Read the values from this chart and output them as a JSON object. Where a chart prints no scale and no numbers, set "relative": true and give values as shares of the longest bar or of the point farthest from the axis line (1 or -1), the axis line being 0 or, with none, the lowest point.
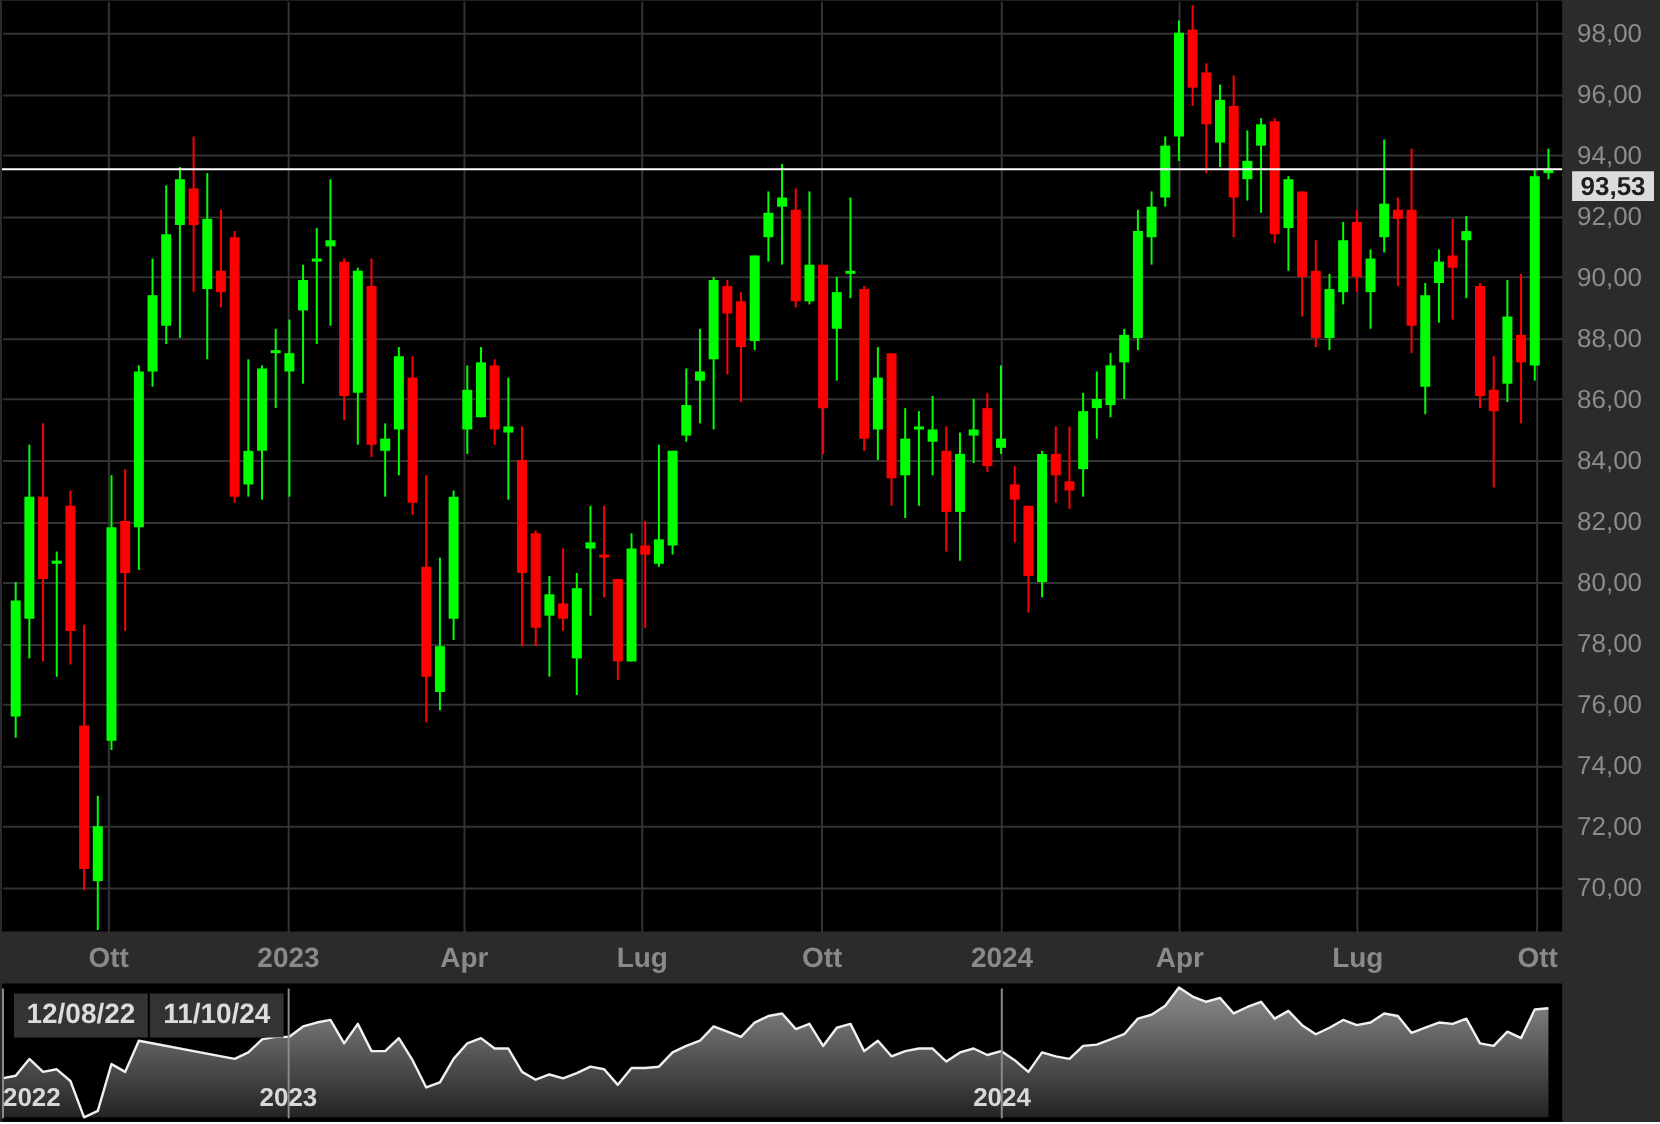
{
  "chart_data": [
    {
      "type": "candlestick",
      "x": [
        "2022-08-15",
        "2022-08-22",
        "2022-08-29",
        "2022-09-05",
        "2022-09-12",
        "2022-09-19",
        "2022-09-26",
        "2022-10-03",
        "2022-10-10",
        "2022-10-17",
        "2022-10-24",
        "2022-10-31",
        "2022-11-07",
        "2022-11-14",
        "2022-11-21",
        "2022-11-28",
        "2022-12-05",
        "2022-12-12",
        "2022-12-19",
        "2022-12-26",
        "2023-01-02",
        "2023-01-09",
        "2023-01-16",
        "2023-01-23",
        "2023-01-30",
        "2023-02-06",
        "2023-02-13",
        "2023-02-20",
        "2023-02-27",
        "2023-03-06",
        "2023-03-13",
        "2023-03-20",
        "2023-03-27",
        "2023-04-03",
        "2023-04-10",
        "2023-04-17",
        "2023-04-24",
        "2023-05-01",
        "2023-05-08",
        "2023-05-15",
        "2023-05-22",
        "2023-05-29",
        "2023-06-05",
        "2023-06-12",
        "2023-06-19",
        "2023-06-26",
        "2023-07-03",
        "2023-07-10",
        "2023-07-17",
        "2023-07-24",
        "2023-07-31",
        "2023-08-07",
        "2023-08-14",
        "2023-08-21",
        "2023-08-28",
        "2023-09-04",
        "2023-09-11",
        "2023-09-18",
        "2023-09-25",
        "2023-10-02",
        "2023-10-09",
        "2023-10-16",
        "2023-10-23",
        "2023-10-30",
        "2023-11-06",
        "2023-11-13",
        "2023-11-20",
        "2023-11-27",
        "2023-12-04",
        "2023-12-11",
        "2023-12-18",
        "2023-12-25",
        "2024-01-01",
        "2024-01-08",
        "2024-01-15",
        "2024-01-22",
        "2024-01-29",
        "2024-02-05",
        "2024-02-12",
        "2024-02-19",
        "2024-02-26",
        "2024-03-04",
        "2024-03-11",
        "2024-03-18",
        "2024-03-25",
        "2024-04-01",
        "2024-04-08",
        "2024-04-15",
        "2024-04-22",
        "2024-04-29",
        "2024-05-06",
        "2024-05-13",
        "2024-05-20",
        "2024-05-27",
        "2024-06-03",
        "2024-06-10",
        "2024-06-17",
        "2024-06-24",
        "2024-07-01",
        "2024-07-08",
        "2024-07-15",
        "2024-07-22",
        "2024-07-29",
        "2024-08-05",
        "2024-08-12",
        "2024-08-19",
        "2024-08-26",
        "2024-09-02",
        "2024-09-09",
        "2024-09-16",
        "2024-09-23",
        "2024-09-30",
        "2024-10-07"
      ],
      "ohlc": [
        [
          75.6,
          80.0,
          74.9,
          79.4
        ],
        [
          78.8,
          84.5,
          77.5,
          82.8
        ],
        [
          82.8,
          85.2,
          77.4,
          80.1
        ],
        [
          80.6,
          81.0,
          76.9,
          80.7
        ],
        [
          82.5,
          83.0,
          77.3,
          78.4
        ],
        [
          75.3,
          78.6,
          69.9,
          70.6
        ],
        [
          70.2,
          73.0,
          68.6,
          72.0
        ],
        [
          74.8,
          83.5,
          74.5,
          81.8
        ],
        [
          82.0,
          83.7,
          78.4,
          80.3
        ],
        [
          81.8,
          87.1,
          80.4,
          86.9
        ],
        [
          86.9,
          90.6,
          86.4,
          89.4
        ],
        [
          88.4,
          93.0,
          87.8,
          91.4
        ],
        [
          91.7,
          93.6,
          88.0,
          93.2
        ],
        [
          92.9,
          94.6,
          89.5,
          91.7
        ],
        [
          89.6,
          93.4,
          87.3,
          91.9
        ],
        [
          90.2,
          92.2,
          89.0,
          89.5
        ],
        [
          91.3,
          91.5,
          82.6,
          82.8
        ],
        [
          83.2,
          87.3,
          82.8,
          84.3
        ],
        [
          84.3,
          87.1,
          82.7,
          87.0
        ],
        [
          87.5,
          88.3,
          85.7,
          87.6
        ],
        [
          86.9,
          88.6,
          82.8,
          87.5
        ],
        [
          88.9,
          90.4,
          86.5,
          89.9
        ],
        [
          90.5,
          91.6,
          87.8,
          90.6
        ],
        [
          91.0,
          93.2,
          88.4,
          91.2
        ],
        [
          90.5,
          90.6,
          85.3,
          86.1
        ],
        [
          86.2,
          90.3,
          84.5,
          90.2
        ],
        [
          89.7,
          90.6,
          84.1,
          84.5
        ],
        [
          84.3,
          85.2,
          82.8,
          84.7
        ],
        [
          85.0,
          87.7,
          83.5,
          87.4
        ],
        [
          86.7,
          87.4,
          82.2,
          82.6
        ],
        [
          80.5,
          83.5,
          75.4,
          76.9
        ],
        [
          76.4,
          80.8,
          75.8,
          77.9
        ],
        [
          78.8,
          83.0,
          78.1,
          82.8
        ],
        [
          85.0,
          87.1,
          84.2,
          86.3
        ],
        [
          85.4,
          87.7,
          85.4,
          87.2
        ],
        [
          87.1,
          87.3,
          84.5,
          85.0
        ],
        [
          84.9,
          86.7,
          82.7,
          85.1
        ],
        [
          84.0,
          85.1,
          77.9,
          80.3
        ],
        [
          81.6,
          81.7,
          77.9,
          78.5
        ],
        [
          78.9,
          80.2,
          76.9,
          79.6
        ],
        [
          79.3,
          81.1,
          78.4,
          78.8
        ],
        [
          77.5,
          80.3,
          76.3,
          79.8
        ],
        [
          81.1,
          82.5,
          78.9,
          81.3
        ],
        [
          80.9,
          82.5,
          79.5,
          80.8
        ],
        [
          80.1,
          80.1,
          76.8,
          77.4
        ],
        [
          77.4,
          81.6,
          77.4,
          81.1
        ],
        [
          81.2,
          82.0,
          78.5,
          80.9
        ],
        [
          80.6,
          84.5,
          80.5,
          81.4
        ],
        [
          81.2,
          84.3,
          80.9,
          84.3
        ],
        [
          84.8,
          87.0,
          84.6,
          85.8
        ],
        [
          86.6,
          88.3,
          85.2,
          86.9
        ],
        [
          87.3,
          90.0,
          85.0,
          89.9
        ],
        [
          89.7,
          89.9,
          86.8,
          88.8
        ],
        [
          89.2,
          89.5,
          85.9,
          87.7
        ],
        [
          87.9,
          90.7,
          87.6,
          90.7
        ],
        [
          91.3,
          92.8,
          90.5,
          92.1
        ],
        [
          92.3,
          93.7,
          90.4,
          92.6
        ],
        [
          92.2,
          92.9,
          89.0,
          89.2
        ],
        [
          89.2,
          92.8,
          89.1,
          90.4
        ],
        [
          90.4,
          90.4,
          84.2,
          85.7
        ],
        [
          88.3,
          90.0,
          86.6,
          89.5
        ],
        [
          90.1,
          92.6,
          89.3,
          90.2
        ],
        [
          89.6,
          89.7,
          84.3,
          84.7
        ],
        [
          85.0,
          87.7,
          84.0,
          86.7
        ],
        [
          87.5,
          87.5,
          82.5,
          83.4
        ],
        [
          83.5,
          85.7,
          82.1,
          84.7
        ],
        [
          85.0,
          85.6,
          82.5,
          85.1
        ],
        [
          84.6,
          86.1,
          83.5,
          85.0
        ],
        [
          84.3,
          85.1,
          81.0,
          82.3
        ],
        [
          82.3,
          84.9,
          80.7,
          84.2
        ],
        [
          84.8,
          86.0,
          83.9,
          85.0
        ],
        [
          85.7,
          86.2,
          83.6,
          83.8
        ],
        [
          84.4,
          87.1,
          84.2,
          84.7
        ],
        [
          83.2,
          83.8,
          81.3,
          82.7
        ],
        [
          82.5,
          82.5,
          79.0,
          80.2
        ],
        [
          80.0,
          84.3,
          79.5,
          84.2
        ],
        [
          84.2,
          85.1,
          82.6,
          83.5
        ],
        [
          83.3,
          85.1,
          82.4,
          83.0
        ],
        [
          83.7,
          86.2,
          82.8,
          85.6
        ],
        [
          85.7,
          86.9,
          84.7,
          86.0
        ],
        [
          85.8,
          87.5,
          85.4,
          87.1
        ],
        [
          87.2,
          88.3,
          86.0,
          88.1
        ],
        [
          88.0,
          92.2,
          87.6,
          91.5
        ],
        [
          91.3,
          92.8,
          90.4,
          92.3
        ],
        [
          92.6,
          94.6,
          92.3,
          94.3
        ],
        [
          94.6,
          98.4,
          93.8,
          98.0
        ],
        [
          98.1,
          98.9,
          95.6,
          96.2
        ],
        [
          96.7,
          97.0,
          93.4,
          95.0
        ],
        [
          94.4,
          96.3,
          93.6,
          95.8
        ],
        [
          95.6,
          96.6,
          91.3,
          92.6
        ],
        [
          93.2,
          94.8,
          92.5,
          93.8
        ],
        [
          94.3,
          95.2,
          92.1,
          95.0
        ],
        [
          95.1,
          95.2,
          91.1,
          91.4
        ],
        [
          91.6,
          93.3,
          90.2,
          93.2
        ],
        [
          92.8,
          92.8,
          88.7,
          90.0
        ],
        [
          90.2,
          91.2,
          87.7,
          88.0
        ],
        [
          88.0,
          90.1,
          87.6,
          89.6
        ],
        [
          89.5,
          91.8,
          89.1,
          91.2
        ],
        [
          91.8,
          92.2,
          89.5,
          90.0
        ],
        [
          89.5,
          90.9,
          88.3,
          90.6
        ],
        [
          91.3,
          94.5,
          90.8,
          92.4
        ],
        [
          92.2,
          92.6,
          89.7,
          91.9
        ],
        [
          92.2,
          94.2,
          87.5,
          88.4
        ],
        [
          86.4,
          89.8,
          85.5,
          89.4
        ],
        [
          89.8,
          90.9,
          88.5,
          90.5
        ],
        [
          90.7,
          91.9,
          88.6,
          90.3
        ],
        [
          91.2,
          92.0,
          89.3,
          91.5
        ],
        [
          89.7,
          89.8,
          85.7,
          86.1
        ],
        [
          86.3,
          87.4,
          83.1,
          85.6
        ],
        [
          86.5,
          89.9,
          85.9,
          88.7
        ],
        [
          88.1,
          90.1,
          85.2,
          87.2
        ],
        [
          87.1,
          93.5,
          86.6,
          93.3
        ],
        [
          93.4,
          94.2,
          93.2,
          93.53
        ]
      ],
      "colors": [
        "#00ff00",
        "#00ff00",
        "#ff0000",
        "#00ff00",
        "#ff0000",
        "#ff0000",
        "#00ff00",
        "#00ff00",
        "#ff0000",
        "#00ff00",
        "#00ff00",
        "#00ff00",
        "#00ff00",
        "#ff0000",
        "#00ff00",
        "#ff0000",
        "#ff0000",
        "#00ff00",
        "#00ff00",
        "#00ff00",
        "#00ff00",
        "#00ff00",
        "#00ff00",
        "#00ff00",
        "#ff0000",
        "#00ff00",
        "#ff0000",
        "#00ff00",
        "#00ff00",
        "#ff0000",
        "#ff0000",
        "#00ff00",
        "#00ff00",
        "#00ff00",
        "#00ff00",
        "#ff0000",
        "#00ff00",
        "#ff0000",
        "#ff0000",
        "#00ff00",
        "#ff0000",
        "#00ff00",
        "#00ff00",
        "#ff0000",
        "#ff0000",
        "#00ff00",
        "#ff0000",
        "#00ff00",
        "#00ff00",
        "#00ff00",
        "#00ff00",
        "#00ff00",
        "#ff0000",
        "#ff0000",
        "#00ff00",
        "#00ff00",
        "#00ff00",
        "#ff0000",
        "#00ff00",
        "#ff0000",
        "#00ff00",
        "#00ff00",
        "#ff0000",
        "#00ff00",
        "#ff0000",
        "#00ff00",
        "#00ff00",
        "#00ff00",
        "#ff0000",
        "#00ff00",
        "#00ff00",
        "#ff0000",
        "#00ff00",
        "#ff0000",
        "#ff0000",
        "#00ff00",
        "#ff0000",
        "#ff0000",
        "#00ff00",
        "#00ff00",
        "#00ff00",
        "#00ff00",
        "#00ff00",
        "#00ff00",
        "#00ff00",
        "#00ff00",
        "#ff0000",
        "#ff0000",
        "#00ff00",
        "#ff0000",
        "#00ff00",
        "#00ff00",
        "#ff0000",
        "#00ff00",
        "#ff0000",
        "#ff0000",
        "#00ff00",
        "#00ff00",
        "#ff0000",
        "#00ff00",
        "#00ff00",
        "#ff0000",
        "#ff0000",
        "#00ff00",
        "#00ff00",
        "#ff0000",
        "#00ff00",
        "#ff0000",
        "#ff0000",
        "#00ff00",
        "#ff0000",
        "#00ff00",
        "#00ff00"
      ],
      "xlim": [
        "2022-08-08",
        "2024-10-14"
      ],
      "ylim": [
        68.55,
        99.05
      ],
      "xticks": [
        {
          "value": "2022-10-01",
          "label": "Ott"
        },
        {
          "value": "2023-01-01",
          "label": "2023"
        },
        {
          "value": "2023-04-01",
          "label": "Apr"
        },
        {
          "value": "2023-07-01",
          "label": "Lug"
        },
        {
          "value": "2023-10-01",
          "label": "Ott"
        },
        {
          "value": "2024-01-01",
          "label": "2024"
        },
        {
          "value": "2024-04-01",
          "label": "Apr"
        },
        {
          "value": "2024-07-01",
          "label": "Lug"
        },
        {
          "value": "2024-10-01",
          "label": "Ott"
        }
      ],
      "yticks": [
        {
          "value": 70,
          "label": "70,00"
        },
        {
          "value": 72,
          "label": "72,00"
        },
        {
          "value": 74,
          "label": "74,00"
        },
        {
          "value": 76,
          "label": "76,00"
        },
        {
          "value": 78,
          "label": "78,00"
        },
        {
          "value": 80,
          "label": "80,00"
        },
        {
          "value": 82,
          "label": "82,00"
        },
        {
          "value": 84,
          "label": "84,00"
        },
        {
          "value": 86,
          "label": "86,00"
        },
        {
          "value": 88,
          "label": "88,00"
        },
        {
          "value": 90,
          "label": "90,00"
        },
        {
          "value": 92,
          "label": "92,00"
        },
        {
          "value": 94,
          "label": "94,00"
        },
        {
          "value": 96,
          "label": "96,00"
        },
        {
          "value": 98,
          "label": "98,00"
        }
      ],
      "grid": true,
      "ref_lines": [
        {
          "axis": "y",
          "value": 93.53,
          "label": "93,53",
          "color": "#ffffff"
        }
      ]
    },
    {
      "type": "area",
      "relative": true,
      "x": [
        "2022-08-08",
        "2022-08-15",
        "2022-08-22",
        "2022-08-29",
        "2022-09-05",
        "2022-09-12",
        "2022-09-19",
        "2022-09-26",
        "2022-10-03",
        "2022-10-10",
        "2022-10-17",
        "2022-10-24",
        "2022-10-31",
        "2022-11-07",
        "2022-11-14",
        "2022-11-21",
        "2022-11-28",
        "2022-12-05",
        "2022-12-12",
        "2022-12-19",
        "2022-12-26",
        "2023-01-02",
        "2023-01-09",
        "2023-01-16",
        "2023-01-23",
        "2023-01-30",
        "2023-02-06",
        "2023-02-13",
        "2023-02-20",
        "2023-02-27",
        "2023-03-06",
        "2023-03-13",
        "2023-03-20",
        "2023-03-27",
        "2023-04-03",
        "2023-04-10",
        "2023-04-17",
        "2023-04-24",
        "2023-05-01",
        "2023-05-08",
        "2023-05-15",
        "2023-05-22",
        "2023-05-29",
        "2023-06-05",
        "2023-06-12",
        "2023-06-19",
        "2023-06-26",
        "2023-07-03",
        "2023-07-10",
        "2023-07-17",
        "2023-07-24",
        "2023-07-31",
        "2023-08-07",
        "2023-08-14",
        "2023-08-21",
        "2023-08-28",
        "2023-09-04",
        "2023-09-11",
        "2023-09-18",
        "2023-09-25",
        "2023-10-02",
        "2023-10-09",
        "2023-10-16",
        "2023-10-23",
        "2023-10-30",
        "2023-11-06",
        "2023-11-13",
        "2023-11-20",
        "2023-11-27",
        "2023-12-04",
        "2023-12-11",
        "2023-12-18",
        "2023-12-25",
        "2024-01-01",
        "2024-01-08",
        "2024-01-15",
        "2024-01-22",
        "2024-01-29",
        "2024-02-05",
        "2024-02-12",
        "2024-02-19",
        "2024-02-26",
        "2024-03-04",
        "2024-03-11",
        "2024-03-18",
        "2024-03-25",
        "2024-04-01",
        "2024-04-08",
        "2024-04-15",
        "2024-04-22",
        "2024-04-29",
        "2024-05-06",
        "2024-05-13",
        "2024-05-20",
        "2024-05-27",
        "2024-06-03",
        "2024-06-10",
        "2024-06-17",
        "2024-06-24",
        "2024-07-01",
        "2024-07-08",
        "2024-07-15",
        "2024-07-22",
        "2024-07-29",
        "2024-08-05",
        "2024-08-12",
        "2024-08-19",
        "2024-08-26",
        "2024-09-02",
        "2024-09-09",
        "2024-09-16",
        "2024-09-23",
        "2024-09-30",
        "2024-10-07"
      ],
      "values": [
        0.3,
        0.32,
        0.45,
        0.35,
        0.37,
        0.28,
        0,
        0.05,
        0.41,
        0.35,
        0.59,
        null,
        null,
        null,
        null,
        null,
        null,
        0.45,
        0.5,
        0.6,
        0.62,
        0.62,
        0.7,
        0.73,
        0.75,
        0.57,
        0.72,
        0.51,
        0.51,
        0.61,
        0.44,
        0.23,
        0.27,
        0.45,
        0.57,
        0.61,
        0.53,
        0.53,
        0.35,
        0.29,
        0.33,
        0.3,
        0.34,
        0.39,
        0.37,
        0.25,
        0.38,
        0.38,
        0.39,
        0.5,
        0.55,
        0.59,
        0.7,
        0.66,
        0.62,
        0.73,
        0.78,
        0.8,
        0.68,
        0.72,
        0.55,
        0.69,
        0.72,
        0.51,
        0.59,
        0.47,
        0.51,
        0.53,
        0.53,
        0.43,
        0.5,
        0.53,
        0.48,
        0.51,
        0.44,
        0.35,
        0.5,
        0.47,
        0.45,
        0.55,
        0.56,
        0.6,
        0.64,
        0.76,
        0.79,
        0.86,
        1,
        0.93,
        0.89,
        0.92,
        0.8,
        0.85,
        0.89,
        0.76,
        0.82,
        0.71,
        0.64,
        0.69,
        0.75,
        0.71,
        0.73,
        0.8,
        0.78,
        0.65,
        0.69,
        0.73,
        0.72,
        0.76,
        0.57,
        0.55,
        0.66,
        0.61,
        0.83,
        0.84
      ],
      "color": "#8c8c8c",
      "xlim": [
        "2022-08-08",
        "2024-10-14"
      ],
      "xticks": [
        {
          "value": "2022-08-08",
          "label": "2022"
        },
        {
          "value": "2023-01-01",
          "label": "2023"
        },
        {
          "value": "2024-01-01",
          "label": "2024"
        }
      ],
      "grid": "x",
      "annotations": [
        "12/08/22",
        "11/10/24"
      ]
    }
  ]
}
